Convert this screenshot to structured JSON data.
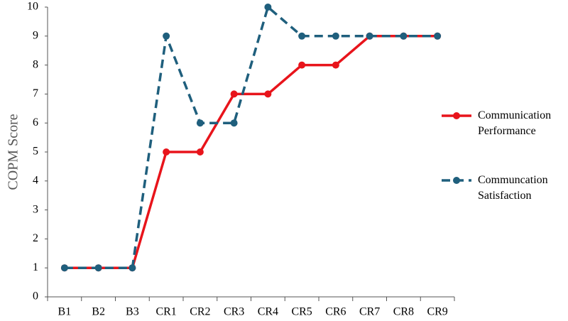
{
  "chart_data": {
    "type": "line",
    "y_label": "COPM Score",
    "categories": [
      "B1",
      "B2",
      "B3",
      "CR1",
      "CR2",
      "CR3",
      "CR4",
      "CR5",
      "CR6",
      "CR7",
      "CR8",
      "CR9"
    ],
    "series": [
      {
        "name": "Communication Performance",
        "color": "#e8141b",
        "style": "solid",
        "values": [
          1,
          1,
          1,
          5,
          5,
          7,
          7,
          8,
          8,
          9,
          9,
          9
        ]
      },
      {
        "name": "Communcation Satisfaction",
        "color": "#1f5f7d",
        "style": "dashed",
        "values": [
          1,
          1,
          1,
          9,
          6,
          6,
          10,
          9,
          9,
          9,
          9,
          9
        ]
      }
    ],
    "ylim": [
      0,
      10
    ],
    "yticks": [
      0,
      1,
      2,
      3,
      4,
      5,
      6,
      7,
      8,
      9,
      10
    ],
    "grid": false,
    "legend": "right"
  }
}
